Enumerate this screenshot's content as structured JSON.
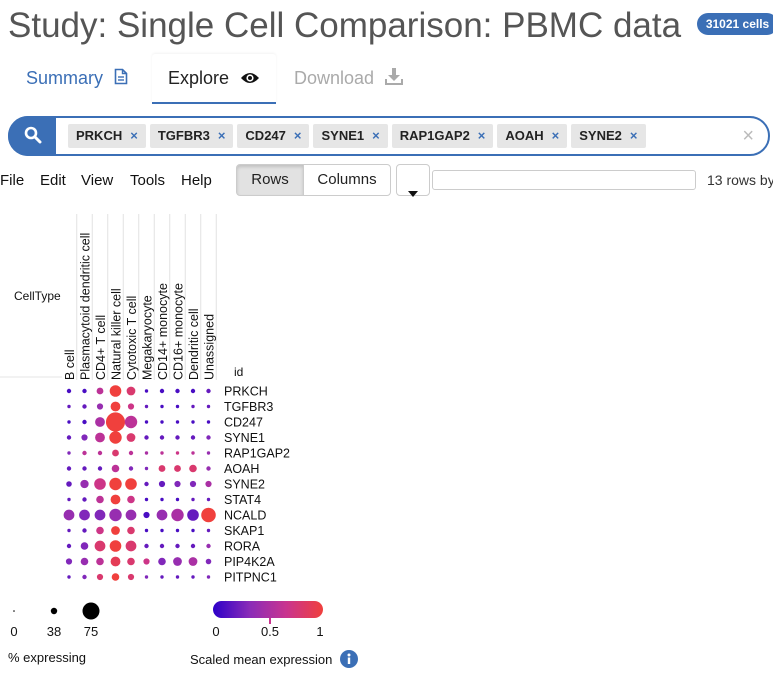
{
  "study": {
    "title": "Study: Single Cell Comparison: PBMC data",
    "cell_badge": "31021 cells"
  },
  "tabs": [
    {
      "label": "Summary",
      "icon": "document-icon"
    },
    {
      "label": "Explore",
      "icon": "eye-icon"
    },
    {
      "label": "Download",
      "icon": "download-icon"
    }
  ],
  "search": {
    "icon": "search-icon",
    "chips": [
      "PRKCH",
      "TGFBR3",
      "CD247",
      "SYNE1",
      "RAP1GAP2",
      "AOAH",
      "SYNE2"
    ],
    "chip_remove": "×",
    "clear": "×"
  },
  "toolbar": {
    "menus": [
      "File",
      "Edit",
      "View",
      "Tools",
      "Help"
    ],
    "rows_label": "Rows",
    "columns_label": "Columns",
    "rows_count": "13 rows by"
  },
  "plot": {
    "row_header": "CellType",
    "id_header": "id",
    "cell_types": [
      "B cell",
      "Plasmacytoid dendritic cell",
      "CD4+ T cell",
      "Natural killer cell",
      "Cytotoxic T cell",
      "Megakaryocyte",
      "CD14+ monocyte",
      "CD16+ monocyte",
      "Dendritic cell",
      "Unassigned"
    ],
    "genes": [
      "PRKCH",
      "TGFBR3",
      "CD247",
      "SYNE1",
      "RAP1GAP2",
      "AOAH",
      "SYNE2",
      "STAT4",
      "NCALD",
      "SKAP1",
      "RORA",
      "PIP4K2A",
      "PITPNC1"
    ],
    "pct_expressing": [
      [
        5,
        5,
        12,
        35,
        20,
        3,
        5,
        5,
        5,
        5
      ],
      [
        3,
        5,
        10,
        25,
        10,
        3,
        3,
        3,
        3,
        3
      ],
      [
        3,
        5,
        25,
        95,
        40,
        3,
        3,
        3,
        3,
        3
      ],
      [
        5,
        10,
        25,
        40,
        20,
        5,
        5,
        5,
        5,
        5
      ],
      [
        3,
        5,
        5,
        12,
        5,
        3,
        3,
        3,
        3,
        3
      ],
      [
        5,
        5,
        5,
        15,
        5,
        3,
        12,
        12,
        15,
        5
      ],
      [
        8,
        18,
        35,
        40,
        35,
        5,
        10,
        10,
        10,
        10
      ],
      [
        3,
        5,
        15,
        25,
        15,
        3,
        3,
        3,
        3,
        3
      ],
      [
        30,
        30,
        30,
        40,
        30,
        10,
        30,
        40,
        35,
        55
      ],
      [
        3,
        5,
        15,
        20,
        15,
        3,
        3,
        3,
        3,
        3
      ],
      [
        5,
        15,
        30,
        35,
        30,
        5,
        5,
        5,
        5,
        5
      ],
      [
        10,
        15,
        15,
        25,
        15,
        10,
        15,
        20,
        20,
        8
      ],
      [
        3,
        5,
        10,
        15,
        10,
        3,
        3,
        3,
        3,
        3
      ]
    ],
    "scaled_expression": [
      [
        0.1,
        0.1,
        0.6,
        1.0,
        0.8,
        0.1,
        0.1,
        0.1,
        0.1,
        0.2
      ],
      [
        0.2,
        0.2,
        0.4,
        1.0,
        0.7,
        0.2,
        0.1,
        0.1,
        0.2,
        0.2
      ],
      [
        0.1,
        0.1,
        0.5,
        1.0,
        0.6,
        0.1,
        0.1,
        0.1,
        0.1,
        0.1
      ],
      [
        0.2,
        0.3,
        0.6,
        1.0,
        0.8,
        0.2,
        0.2,
        0.2,
        0.2,
        0.3
      ],
      [
        0.3,
        0.6,
        0.6,
        0.8,
        0.6,
        0.5,
        0.6,
        0.7,
        0.6,
        0.4
      ],
      [
        0.2,
        0.2,
        0.2,
        0.6,
        0.3,
        0.3,
        0.8,
        0.8,
        0.8,
        0.4
      ],
      [
        0.2,
        0.4,
        0.7,
        1.0,
        1.0,
        0.2,
        0.2,
        0.3,
        0.3,
        0.5
      ],
      [
        0.2,
        0.2,
        0.6,
        1.0,
        0.7,
        0.1,
        0.1,
        0.1,
        0.2,
        0.2
      ],
      [
        0.4,
        0.3,
        0.3,
        0.4,
        0.4,
        0.1,
        0.4,
        0.5,
        0.2,
        1.0
      ],
      [
        0.2,
        0.2,
        0.7,
        1.0,
        0.8,
        0.1,
        0.1,
        0.1,
        0.1,
        0.2
      ],
      [
        0.2,
        0.3,
        0.8,
        1.0,
        0.8,
        0.2,
        0.2,
        0.2,
        0.2,
        0.4
      ],
      [
        0.3,
        0.4,
        0.6,
        0.9,
        0.8,
        0.7,
        0.3,
        0.4,
        0.5,
        0.3
      ],
      [
        0.2,
        0.3,
        0.8,
        1.0,
        0.8,
        0.3,
        0.2,
        0.2,
        0.2,
        0.3
      ]
    ]
  },
  "legend": {
    "size_title": "% expressing",
    "size_ticks": [
      "0",
      "38",
      "75"
    ],
    "color_title": "Scaled mean expression",
    "color_ticks": [
      "0",
      "0.5",
      "1"
    ],
    "info_icon": "info-icon",
    "gradient_colors": [
      "#2d00c8",
      "#8a2cb8",
      "#c9348f",
      "#f0403d"
    ]
  },
  "colors": {
    "accent": "#3b6fb6"
  }
}
